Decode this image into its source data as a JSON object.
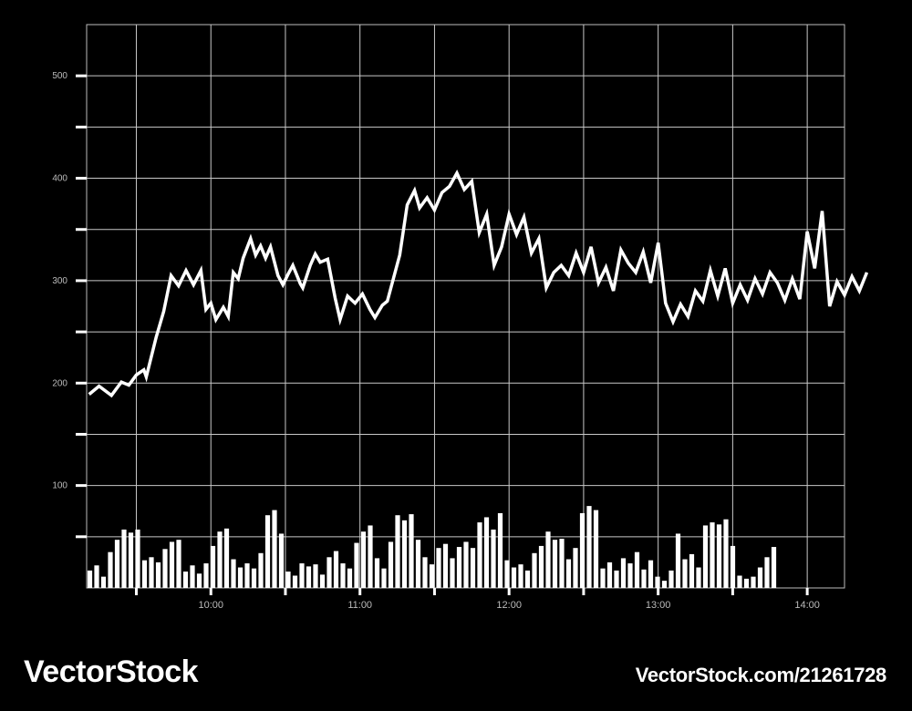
{
  "chart_data": {
    "type": "line",
    "title": "",
    "xlabel": "",
    "ylabel": "",
    "grid": true,
    "ylim": [
      0,
      550
    ],
    "y_ticks": [
      "100",
      "200",
      "300",
      "400",
      "500"
    ],
    "xlim": [
      "09:10",
      "14:15"
    ],
    "x_ticks": [
      "10:00",
      "11:00",
      "12:00",
      "13:00",
      "14:00"
    ],
    "series": [
      {
        "kind": "line",
        "points": [
          [
            "09:11",
            189
          ],
          [
            "09:15",
            197
          ],
          [
            "09:20",
            188
          ],
          [
            "09:24",
            201
          ],
          [
            "09:27",
            198
          ],
          [
            "09:30",
            208
          ],
          [
            "09:33",
            213
          ],
          [
            "09:34",
            206
          ],
          [
            "09:38",
            245
          ],
          [
            "09:41",
            270
          ],
          [
            "09:44",
            305
          ],
          [
            "09:47",
            295
          ],
          [
            "09:50",
            310
          ],
          [
            "09:53",
            296
          ],
          [
            "09:56",
            310
          ],
          [
            "09:58",
            272
          ],
          [
            "10:00",
            278
          ],
          [
            "10:02",
            262
          ],
          [
            "10:05",
            274
          ],
          [
            "10:07",
            265
          ],
          [
            "10:09",
            308
          ],
          [
            "10:11",
            302
          ],
          [
            "10:13",
            322
          ],
          [
            "10:16",
            341
          ],
          [
            "10:18",
            325
          ],
          [
            "10:20",
            334
          ],
          [
            "10:22",
            322
          ],
          [
            "10:24",
            333
          ],
          [
            "10:27",
            305
          ],
          [
            "10:29",
            296
          ],
          [
            "10:31",
            306
          ],
          [
            "10:33",
            315
          ],
          [
            "10:36",
            297
          ],
          [
            "10:37",
            293
          ],
          [
            "10:40",
            315
          ],
          [
            "10:42",
            326
          ],
          [
            "10:44",
            318
          ],
          [
            "10:47",
            321
          ],
          [
            "10:50",
            283
          ],
          [
            "10:52",
            262
          ],
          [
            "10:55",
            285
          ],
          [
            "10:58",
            278
          ],
          [
            "11:01",
            287
          ],
          [
            "11:04",
            272
          ],
          [
            "11:06",
            264
          ],
          [
            "11:09",
            276
          ],
          [
            "11:11",
            280
          ],
          [
            "11:16",
            325
          ],
          [
            "11:19",
            374
          ],
          [
            "11:22",
            388
          ],
          [
            "11:24",
            371
          ],
          [
            "11:27",
            381
          ],
          [
            "11:30",
            369
          ],
          [
            "11:33",
            386
          ],
          [
            "11:36",
            392
          ],
          [
            "11:39",
            405
          ],
          [
            "11:42",
            389
          ],
          [
            "11:45",
            397
          ],
          [
            "11:48",
            347
          ],
          [
            "11:51",
            365
          ],
          [
            "11:54",
            315
          ],
          [
            "11:57",
            333
          ],
          [
            "12:00",
            365
          ],
          [
            "12:03",
            345
          ],
          [
            "12:06",
            362
          ],
          [
            "12:09",
            327
          ],
          [
            "12:12",
            341
          ],
          [
            "12:15",
            293
          ],
          [
            "12:18",
            308
          ],
          [
            "12:21",
            315
          ],
          [
            "12:24",
            305
          ],
          [
            "12:27",
            327
          ],
          [
            "12:30",
            308
          ],
          [
            "12:33",
            333
          ],
          [
            "12:36",
            298
          ],
          [
            "12:39",
            313
          ],
          [
            "12:42",
            290
          ],
          [
            "12:45",
            330
          ],
          [
            "12:48",
            317
          ],
          [
            "12:51",
            308
          ],
          [
            "12:54",
            328
          ],
          [
            "12:57",
            298
          ],
          [
            "13:00",
            337
          ],
          [
            "13:03",
            278
          ],
          [
            "13:06",
            260
          ],
          [
            "13:09",
            277
          ],
          [
            "13:12",
            265
          ],
          [
            "13:15",
            290
          ],
          [
            "13:18",
            280
          ],
          [
            "13:21",
            310
          ],
          [
            "13:24",
            285
          ],
          [
            "13:27",
            312
          ],
          [
            "13:30",
            278
          ],
          [
            "13:33",
            296
          ],
          [
            "13:36",
            281
          ],
          [
            "13:39",
            302
          ],
          [
            "13:42",
            287
          ],
          [
            "13:45",
            308
          ],
          [
            "13:48",
            298
          ],
          [
            "13:51",
            281
          ],
          [
            "13:54",
            302
          ],
          [
            "13:57",
            282
          ],
          [
            "14:00",
            348
          ],
          [
            "14:03",
            312
          ],
          [
            "14:06",
            368
          ],
          [
            "14:09",
            275
          ],
          [
            "14:12",
            299
          ],
          [
            "14:15",
            286
          ],
          [
            "14:18",
            304
          ],
          [
            "14:21",
            290
          ],
          [
            "14:24",
            308
          ]
        ]
      },
      {
        "kind": "bar",
        "values": [
          17,
          22,
          11,
          35,
          47,
          57,
          54,
          57,
          27,
          30,
          25,
          38,
          45,
          47,
          16,
          22,
          14,
          24,
          41,
          55,
          58,
          28,
          20,
          24,
          19,
          34,
          71,
          76,
          53,
          16,
          12,
          24,
          21,
          23,
          13,
          30,
          36,
          24,
          19,
          44,
          55,
          61,
          29,
          19,
          45,
          71,
          66,
          72,
          47,
          30,
          23,
          39,
          43,
          29,
          40,
          45,
          39,
          64,
          69,
          57,
          73,
          27,
          20,
          23,
          17,
          34,
          41,
          55,
          47,
          48,
          28,
          39,
          73,
          80,
          76,
          19,
          25,
          17,
          29,
          24,
          35,
          18,
          27,
          11,
          7,
          17,
          53,
          28,
          33,
          20,
          61,
          64,
          62,
          67,
          41,
          12,
          9,
          11,
          20,
          30,
          40
        ]
      }
    ]
  },
  "watermark": {
    "left": "VectorStock",
    "right": "VectorStock.com/21261728"
  }
}
